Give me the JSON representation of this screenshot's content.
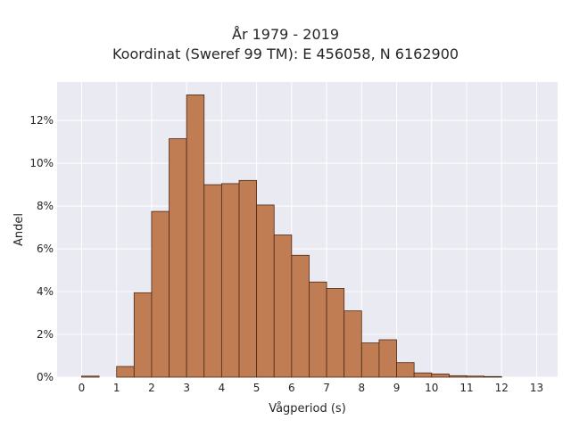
{
  "chart_data": {
    "type": "bar",
    "title": "År 1979 - 2019",
    "subtitle": "Koordinat (Sweref 99 TM): E 456058, N 6162900",
    "xlabel": "Vågperiod (s)",
    "ylabel": "Andel",
    "bin_width": 0.5,
    "bins": [
      {
        "x": 0.0,
        "value": 0.05
      },
      {
        "x": 0.5,
        "value": 0.0
      },
      {
        "x": 1.0,
        "value": 0.5
      },
      {
        "x": 1.5,
        "value": 3.95
      },
      {
        "x": 2.0,
        "value": 7.75
      },
      {
        "x": 2.5,
        "value": 11.15
      },
      {
        "x": 3.0,
        "value": 13.2
      },
      {
        "x": 3.5,
        "value": 9.0
      },
      {
        "x": 4.0,
        "value": 9.05
      },
      {
        "x": 4.5,
        "value": 9.2
      },
      {
        "x": 5.0,
        "value": 8.05
      },
      {
        "x": 5.5,
        "value": 6.65
      },
      {
        "x": 6.0,
        "value": 5.7
      },
      {
        "x": 6.5,
        "value": 4.45
      },
      {
        "x": 7.0,
        "value": 4.15
      },
      {
        "x": 7.5,
        "value": 3.1
      },
      {
        "x": 8.0,
        "value": 1.6
      },
      {
        "x": 8.5,
        "value": 1.75
      },
      {
        "x": 9.0,
        "value": 0.68
      },
      {
        "x": 9.5,
        "value": 0.2
      },
      {
        "x": 10.0,
        "value": 0.15
      },
      {
        "x": 10.5,
        "value": 0.07
      },
      {
        "x": 11.0,
        "value": 0.05
      },
      {
        "x": 11.5,
        "value": 0.03
      }
    ],
    "xlim": [
      -0.7,
      13.6
    ],
    "ylim": [
      0,
      13.8
    ],
    "xticks": [
      0,
      1,
      2,
      3,
      4,
      5,
      6,
      7,
      8,
      9,
      10,
      11,
      12,
      13
    ],
    "yticks": [
      0,
      2,
      4,
      6,
      8,
      10,
      12
    ],
    "ytick_labels": [
      "0%",
      "2%",
      "4%",
      "6%",
      "8%",
      "10%",
      "12%"
    ],
    "grid": true,
    "colors": {
      "bar": "#c07c52",
      "bar_edge": "#4a2a18",
      "plot_bg": "#eaeaf2",
      "grid": "#ffffff"
    }
  }
}
